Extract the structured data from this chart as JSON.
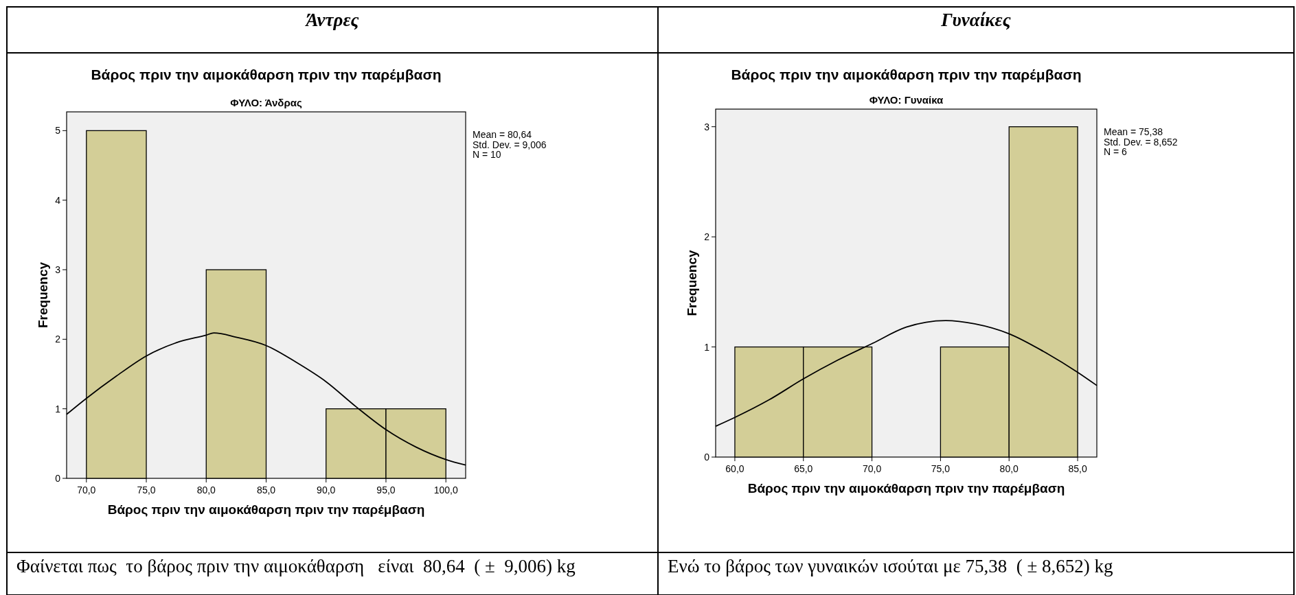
{
  "chart_data": [
    {
      "type": "histogram",
      "title": "Βάρος πριν την αιμοκάθαρση πριν την παρέμβαση",
      "subtitle": "ΦΥΛΟ: Άνδρας",
      "xlabel": "Βάρος πριν την αιμοκάθαρση πριν την παρέμβαση",
      "ylabel": "Frequency",
      "bins": [
        70,
        75,
        80,
        85,
        90,
        95,
        100
      ],
      "values": [
        5,
        0,
        3,
        0,
        1,
        1
      ],
      "color": "#d3ce97",
      "xlim": [
        68.35,
        101.65
      ],
      "ylim": [
        0,
        5.27
      ],
      "xticks": [
        {
          "value": 70,
          "label": "70,0"
        },
        {
          "value": 75,
          "label": "75,0"
        },
        {
          "value": 80,
          "label": "80,0"
        },
        {
          "value": 85,
          "label": "85,0"
        },
        {
          "value": 90,
          "label": "90,0"
        },
        {
          "value": 95,
          "label": "95,0"
        },
        {
          "value": 100,
          "label": "100,0"
        }
      ],
      "yticks": [
        0,
        1,
        2,
        3,
        4,
        5
      ],
      "series": [
        {
          "type": "line",
          "color": "#000000",
          "x": [
            68.35,
            70,
            72.5,
            75,
            77.5,
            80,
            80.64,
            82.5,
            85,
            87.5,
            90,
            92.5,
            95,
            97.5,
            100,
            101.65
          ],
          "values": [
            0.92,
            1.15,
            1.47,
            1.76,
            1.95,
            2.06,
            2.09,
            2.03,
            1.91,
            1.67,
            1.39,
            1.03,
            0.7,
            0.45,
            0.27,
            0.19
          ]
        }
      ],
      "annotations": [
        "Άντρες",
        "Mean = 80,64",
        "Std. Dev. = 9,006",
        "N = 10",
        "Φαίνεται πως  το βάρος πριν την αιμοκάθαρση   είναι  80,64  ( ±  9,006) kg"
      ]
    },
    {
      "type": "histogram",
      "title": "Βάρος πριν την αιμοκάθαρση πριν την παρέμβαση",
      "subtitle": "ΦΥΛΟ: Γυναίκα",
      "xlabel": "Βάρος πριν την αιμοκάθαρση πριν την παρέμβαση",
      "ylabel": "Frequency",
      "bins": [
        60,
        65,
        70,
        75,
        80,
        85
      ],
      "values": [
        1,
        1,
        0,
        1,
        3
      ],
      "color": "#d3ce97",
      "xlim": [
        58.6,
        86.4
      ],
      "ylim": [
        0,
        3.16
      ],
      "xticks": [
        {
          "value": 60,
          "label": "60,0"
        },
        {
          "value": 65,
          "label": "65,0"
        },
        {
          "value": 70,
          "label": "70,0"
        },
        {
          "value": 75,
          "label": "75,0"
        },
        {
          "value": 80,
          "label": "80,0"
        },
        {
          "value": 85,
          "label": "85,0"
        }
      ],
      "yticks": [
        0,
        1,
        2,
        3
      ],
      "series": [
        {
          "type": "line",
          "color": "#000000",
          "x": [
            58.6,
            60,
            62.5,
            65,
            67.5,
            70,
            72.5,
            75.38,
            77.5,
            80,
            82.5,
            85,
            86.4
          ],
          "values": [
            0.28,
            0.36,
            0.52,
            0.71,
            0.88,
            1.03,
            1.18,
            1.24,
            1.21,
            1.12,
            0.96,
            0.77,
            0.65
          ]
        }
      ],
      "annotations": [
        "Γυναίκες",
        "Mean = 75,38",
        "Std. Dev. = 8,652",
        "N = 6",
        "Ενώ το βάρος των γυναικών ισούται με 75,38  ( ± 8,652) kg"
      ]
    }
  ]
}
